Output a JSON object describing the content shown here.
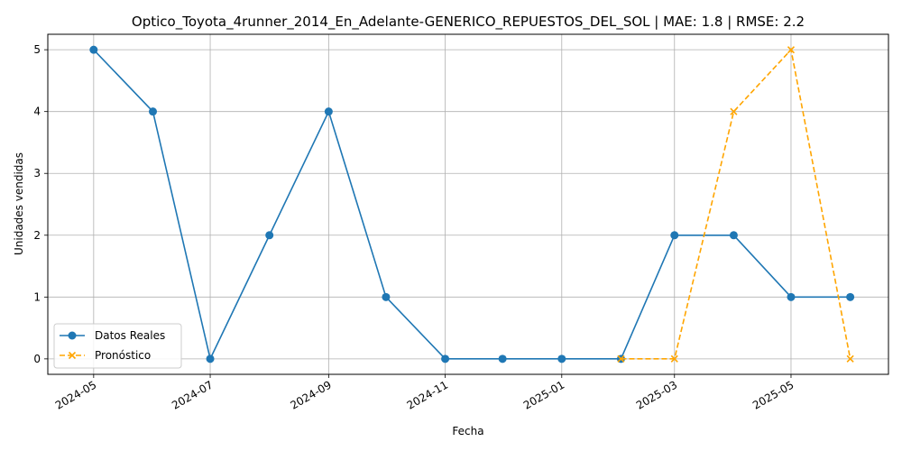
{
  "chart_data": {
    "type": "line",
    "title": "Optico_Toyota_4runner_2014_En_Adelante-GENERICO_REPUESTOS_DEL_SOL | MAE: 1.8 | RMSE: 2.2",
    "xlabel": "Fecha",
    "ylabel": "Unidades vendidas",
    "x_tick_labels": [
      "2024-05",
      "2024-07",
      "2024-09",
      "2024-11",
      "2025-01",
      "2025-03",
      "2025-05"
    ],
    "x_tick_dates": [
      "2024-05-01",
      "2024-07-01",
      "2024-09-01",
      "2024-11-01",
      "2025-01-01",
      "2025-03-01",
      "2025-05-01"
    ],
    "y_ticks": [
      0,
      1,
      2,
      3,
      4,
      5
    ],
    "xlim": [
      "2024-04-07",
      "2025-06-21"
    ],
    "ylim": [
      -0.25,
      5.25
    ],
    "grid": true,
    "legend_position": "lower-left",
    "series": [
      {
        "name": "Datos Reales",
        "color": "#1f77b4",
        "marker": "circle",
        "line_style": "solid",
        "points": [
          {
            "x": "2024-05-01",
            "y": 5
          },
          {
            "x": "2024-06-01",
            "y": 4
          },
          {
            "x": "2024-07-01",
            "y": 0
          },
          {
            "x": "2024-08-01",
            "y": 2
          },
          {
            "x": "2024-09-01",
            "y": 4
          },
          {
            "x": "2024-10-01",
            "y": 1
          },
          {
            "x": "2024-11-01",
            "y": 0
          },
          {
            "x": "2024-12-01",
            "y": 0
          },
          {
            "x": "2025-01-01",
            "y": 0
          },
          {
            "x": "2025-02-01",
            "y": 0
          },
          {
            "x": "2025-03-01",
            "y": 2
          },
          {
            "x": "2025-04-01",
            "y": 2
          },
          {
            "x": "2025-05-01",
            "y": 1
          },
          {
            "x": "2025-06-01",
            "y": 1
          }
        ]
      },
      {
        "name": "Pronóstico",
        "color": "#ffa500",
        "marker": "x",
        "line_style": "dashed",
        "points": [
          {
            "x": "2025-02-01",
            "y": 0
          },
          {
            "x": "2025-03-01",
            "y": 0
          },
          {
            "x": "2025-04-01",
            "y": 4
          },
          {
            "x": "2025-05-01",
            "y": 5
          },
          {
            "x": "2025-06-01",
            "y": 0
          }
        ]
      }
    ]
  }
}
